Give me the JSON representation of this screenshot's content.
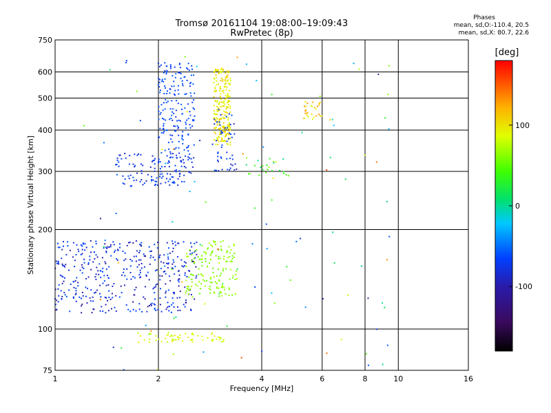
{
  "header": {
    "title": "Tromsø 20161104 19:08:00–19:09:43",
    "subtitle": "RwPretec (8p)"
  },
  "phase_info": {
    "heading": "Phases",
    "line_o": "mean, sd,O:-110.4, 20.5",
    "line_x": "mean, sd,X:  80.7, 22.6"
  },
  "colorbar": {
    "unit_label": "[deg]",
    "ticks": [
      "100",
      "0",
      "-100"
    ],
    "tick_values": [
      100,
      0,
      -100
    ],
    "range": [
      -180,
      180
    ]
  },
  "chart_data": {
    "type": "scatter",
    "xlabel": "Frequency [MHz]",
    "ylabel": "Stationary phase Virtual Height [km]",
    "xscale": "log",
    "yscale": "log",
    "xlim": [
      1,
      16
    ],
    "ylim": [
      75,
      750
    ],
    "x_ticks": [
      1,
      2,
      4,
      6,
      8,
      10,
      16
    ],
    "x_tick_labels": [
      "1",
      "2",
      "4",
      "6",
      "8",
      "10",
      "16"
    ],
    "y_ticks": [
      75,
      100,
      200,
      300,
      400,
      500,
      600,
      750
    ],
    "y_tick_labels": [
      "75",
      "100",
      "200",
      "300",
      "400",
      "500",
      "600",
      "750"
    ],
    "color_by": "phase (deg)",
    "grid": true,
    "clusters": [
      {
        "x": [
          1.0,
          2.6
        ],
        "y": [
          112,
          185
        ],
        "phase": [
          -135,
          -95
        ],
        "n": 420
      },
      {
        "x": [
          1.5,
          2.55
        ],
        "y": [
          270,
          340
        ],
        "phase": [
          -125,
          -95
        ],
        "n": 130
      },
      {
        "x": [
          2.0,
          2.55
        ],
        "y": [
          330,
          640
        ],
        "phase": [
          -115,
          -85
        ],
        "n": 190
      },
      {
        "x": [
          2.9,
          3.25
        ],
        "y": [
          360,
          620
        ],
        "phase": [
          85,
          115
        ],
        "n": 240
      },
      {
        "x": [
          2.9,
          3.35
        ],
        "y": [
          300,
          470
        ],
        "phase": [
          -125,
          -95
        ],
        "n": 50
      },
      {
        "x": [
          2.4,
          3.4
        ],
        "y": [
          125,
          185
        ],
        "phase": [
          50,
          75
        ],
        "n": 160
      },
      {
        "x": [
          1.7,
          3.1
        ],
        "y": [
          91,
          98
        ],
        "phase": [
          75,
          100
        ],
        "n": 60
      },
      {
        "x": [
          3.6,
          4.8
        ],
        "y": [
          290,
          330
        ],
        "phase": [
          -20,
          80
        ],
        "n": 25
      },
      {
        "x": [
          5.3,
          6.0
        ],
        "y": [
          430,
          490
        ],
        "phase": [
          90,
          130
        ],
        "n": 30
      },
      {
        "x": [
          1.2,
          9.5
        ],
        "y": [
          75,
          680
        ],
        "phase": [
          -140,
          150
        ],
        "n": 110
      }
    ]
  }
}
